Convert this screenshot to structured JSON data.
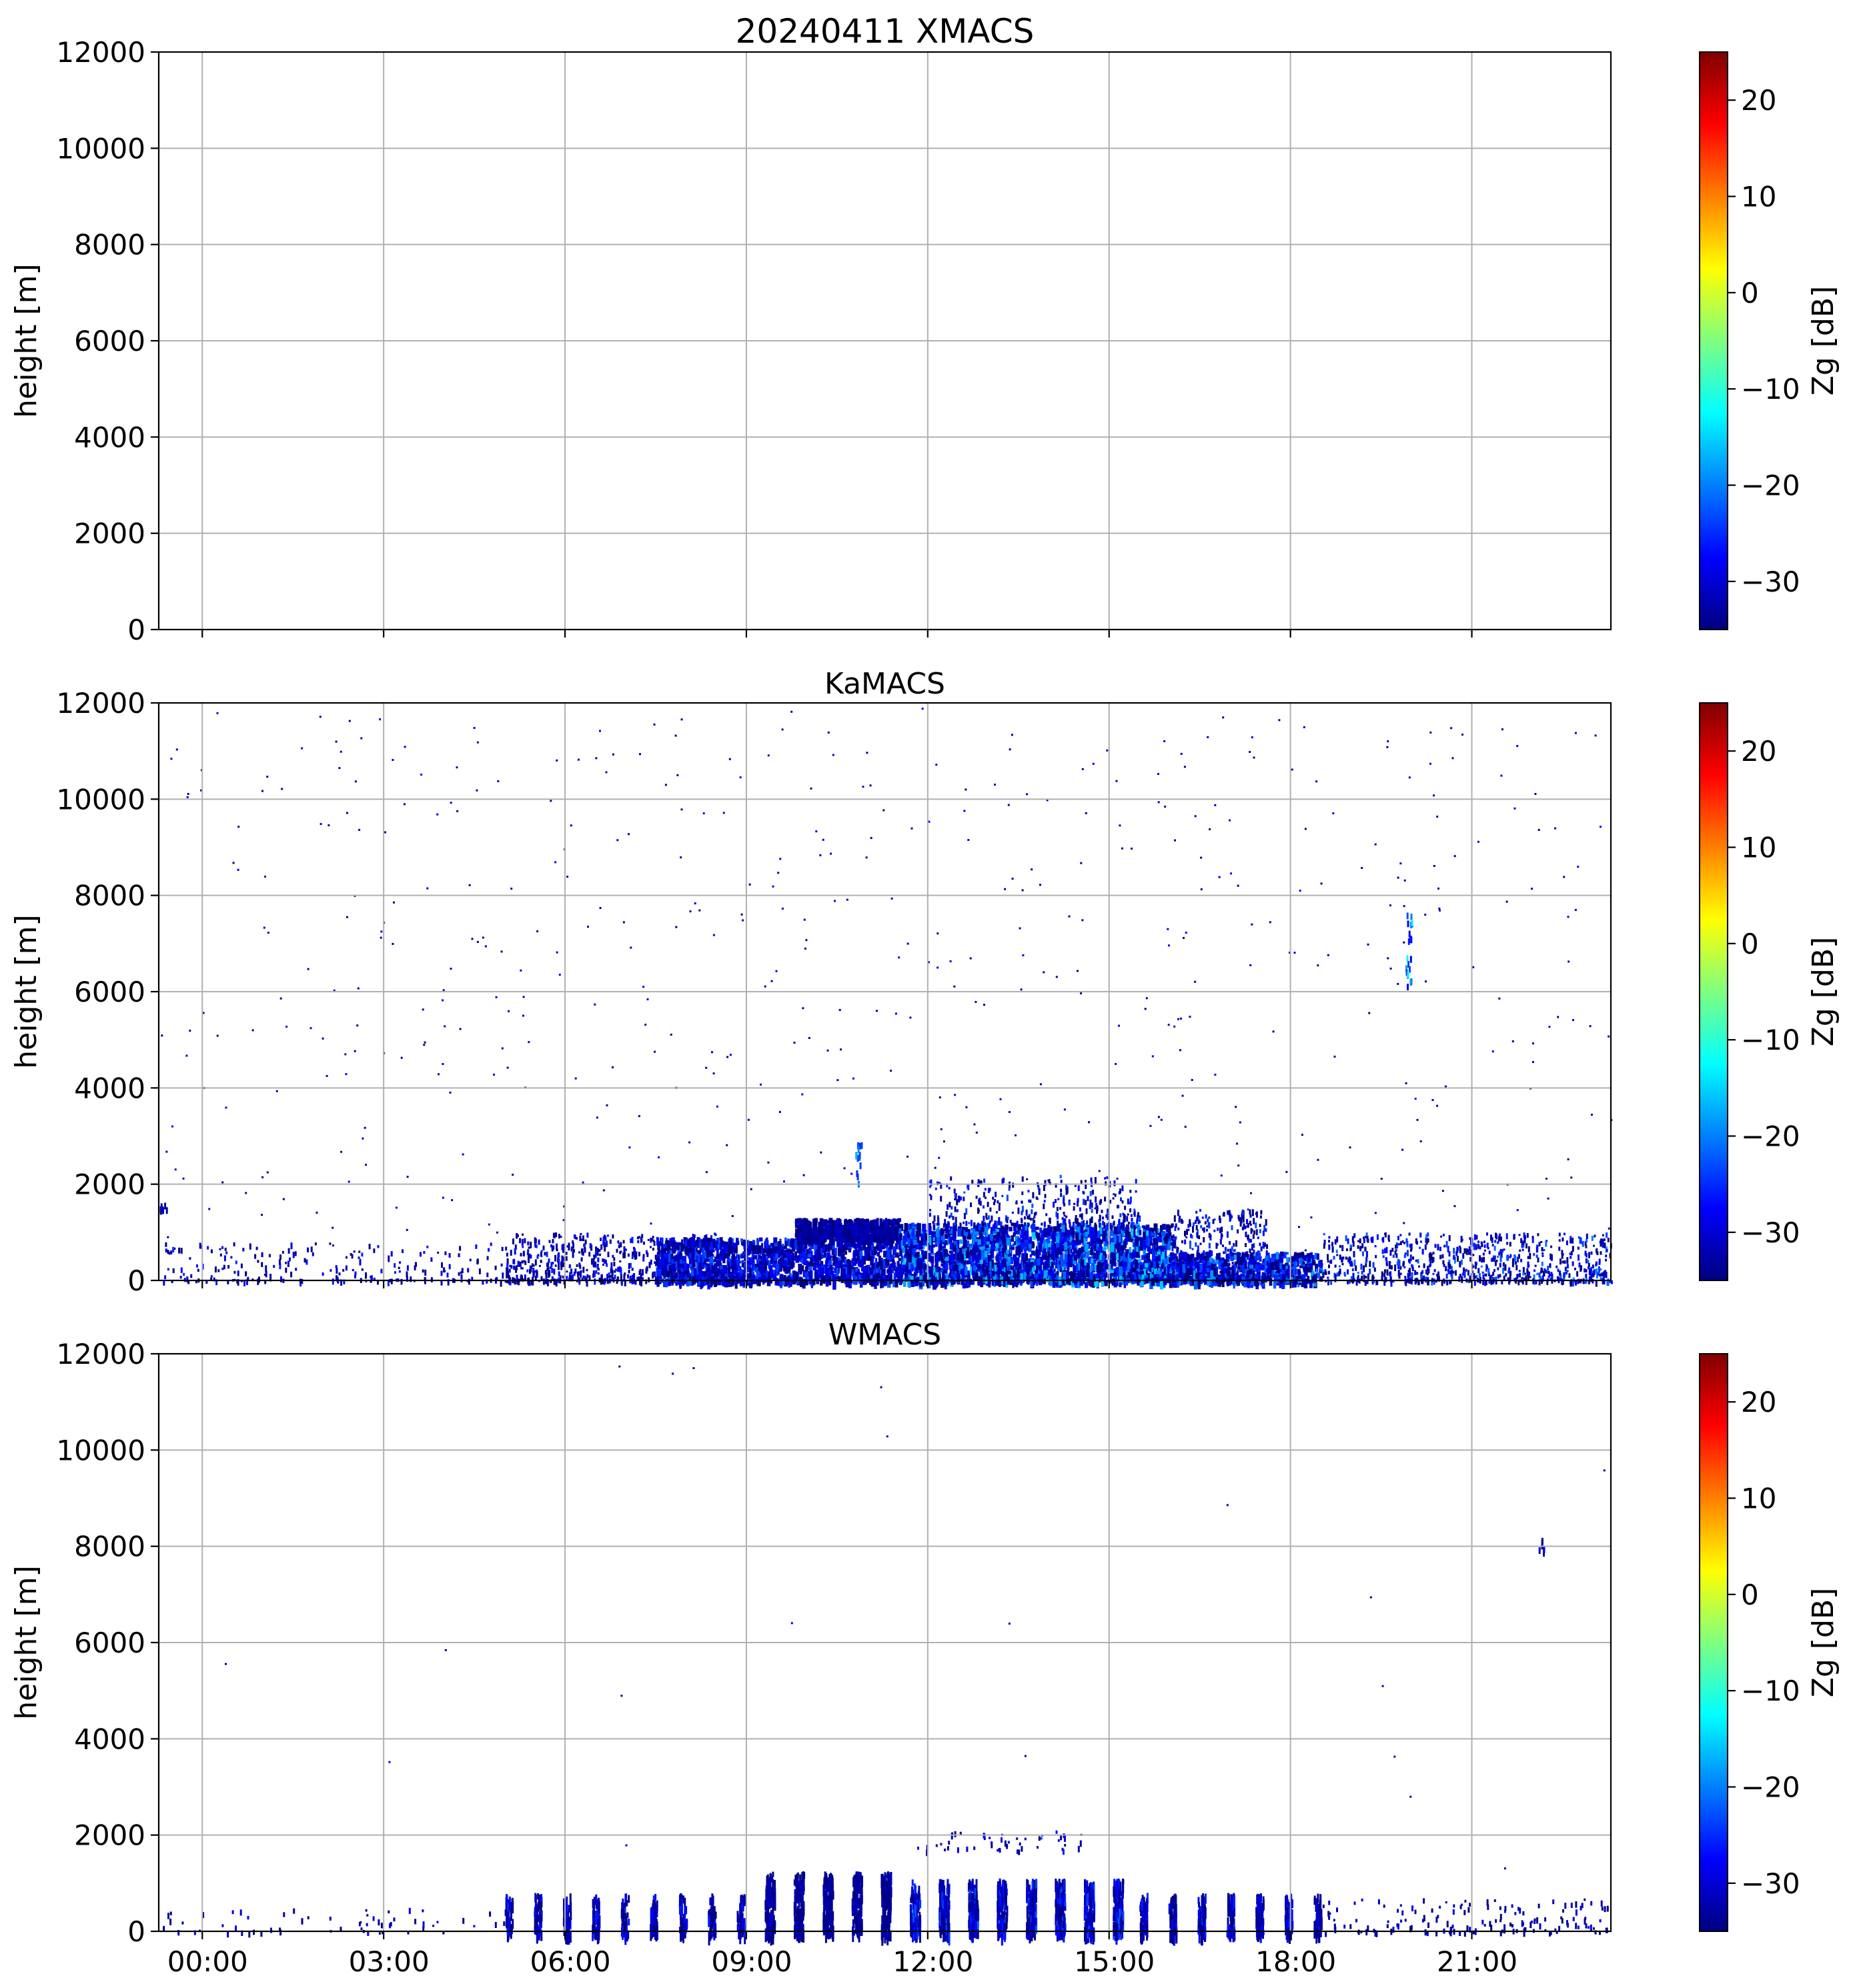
{
  "figure": {
    "title": "20240411 XMACS"
  },
  "colormap": {
    "name": "jet",
    "stops": [
      "#00007f",
      "#0000ff",
      "#007fff",
      "#00ffff",
      "#7fff7f",
      "#ffff00",
      "#ff7f00",
      "#ff0000",
      "#7f0000"
    ]
  },
  "chart_data": [
    {
      "type": "heatmap",
      "title": "20240411 XMACS",
      "xlabel": "",
      "ylabel": "height [m]",
      "x_ticks": [
        "00:00",
        "03:00",
        "06:00",
        "09:00",
        "12:00",
        "15:00",
        "18:00",
        "21:00"
      ],
      "x_tick_labels_visible": false,
      "xlim_hours": [
        -0.72,
        23.3
      ],
      "y_ticks": [
        0,
        2000,
        4000,
        6000,
        8000,
        10000,
        12000
      ],
      "ylim": [
        0,
        12000
      ],
      "grid": true,
      "colorbar": {
        "label": "Zg [dB]",
        "range": [
          -35,
          25
        ],
        "ticks": [
          20,
          10,
          0,
          -10,
          -20,
          -30
        ]
      },
      "features": []
    },
    {
      "type": "heatmap",
      "title": "KaMACS",
      "xlabel": "",
      "ylabel": "height [m]",
      "x_ticks": [
        "00:00",
        "03:00",
        "06:00",
        "09:00",
        "12:00",
        "15:00",
        "18:00",
        "21:00"
      ],
      "x_tick_labels_visible": false,
      "xlim_hours": [
        -0.72,
        23.3
      ],
      "y_ticks": [
        0,
        2000,
        4000,
        6000,
        8000,
        10000,
        12000
      ],
      "ylim": [
        0,
        12000
      ],
      "grid": true,
      "colorbar": {
        "label": "Zg [dB]",
        "range": [
          -35,
          25
        ],
        "ticks": [
          20,
          10,
          0,
          -10,
          -20,
          -30
        ]
      },
      "features": [
        {
          "kind": "noise",
          "t0": -0.7,
          "t1": 23.3,
          "h0": 0,
          "h1": 12000,
          "count": 520,
          "zmin": -35,
          "zmax": -28
        },
        {
          "kind": "speckle",
          "t0": -0.7,
          "t1": 5.0,
          "h0": 0,
          "h1": 800,
          "count": 220,
          "zmin": -35,
          "zmax": -25
        },
        {
          "kind": "speckle",
          "t0": 5.0,
          "t1": 8.5,
          "h0": 0,
          "h1": 1000,
          "count": 600,
          "zmin": -35,
          "zmax": -25
        },
        {
          "kind": "layer",
          "t0": 7.5,
          "t1": 11.5,
          "h0": 0,
          "h1": 900,
          "count": 1500,
          "zmin": -35,
          "zmax": -22
        },
        {
          "kind": "layer",
          "t0": 9.8,
          "t1": 11.5,
          "h0": 900,
          "h1": 1300,
          "count": 650,
          "zmin": -35,
          "zmax": -30
        },
        {
          "kind": "layer",
          "t0": 11.5,
          "t1": 16.0,
          "h0": 0,
          "h1": 1200,
          "count": 2400,
          "zmin": -35,
          "zmax": -15
        },
        {
          "kind": "speckle",
          "t0": 12.0,
          "t1": 15.5,
          "h0": 1200,
          "h1": 2200,
          "count": 320,
          "zmin": -35,
          "zmax": -22
        },
        {
          "kind": "speckle",
          "t0": 16.0,
          "t1": 17.6,
          "h0": 0,
          "h1": 1500,
          "count": 420,
          "zmin": -35,
          "zmax": -22
        },
        {
          "kind": "layer",
          "t0": 16.0,
          "t1": 18.5,
          "h0": 0,
          "h1": 600,
          "count": 600,
          "zmin": -35,
          "zmax": -18
        },
        {
          "kind": "speckle",
          "t0": 18.5,
          "t1": 23.3,
          "h0": 0,
          "h1": 1000,
          "count": 750,
          "zmin": -35,
          "zmax": -20
        },
        {
          "kind": "column",
          "t0": 10.8,
          "t1": 10.9,
          "h0": 2000,
          "h1": 2900,
          "count": 14,
          "zmin": -25,
          "zmax": -15
        },
        {
          "kind": "column",
          "t0": 19.9,
          "t1": 20.0,
          "h0": 6000,
          "h1": 7800,
          "count": 22,
          "zmin": -30,
          "zmax": -10
        },
        {
          "kind": "column",
          "t0": -0.72,
          "t1": -0.6,
          "h0": 1500,
          "h1": 1650,
          "count": 8,
          "zmin": -35,
          "zmax": -30
        }
      ]
    },
    {
      "type": "heatmap",
      "title": "WMACS",
      "xlabel": "",
      "ylabel": "height [m]",
      "x_ticks": [
        "00:00",
        "03:00",
        "06:00",
        "09:00",
        "12:00",
        "15:00",
        "18:00",
        "21:00"
      ],
      "x_tick_labels_visible": true,
      "xlim_hours": [
        -0.72,
        23.3
      ],
      "y_ticks": [
        0,
        2000,
        4000,
        6000,
        8000,
        10000,
        12000
      ],
      "ylim": [
        0,
        12000
      ],
      "grid": true,
      "colorbar": {
        "label": "Zg [dB]",
        "range": [
          -35,
          25
        ],
        "ticks": [
          20,
          10,
          0,
          -10,
          -20,
          -30
        ]
      },
      "features": [
        {
          "kind": "noise",
          "t0": -0.7,
          "t1": 23.3,
          "h0": 0,
          "h1": 12000,
          "count": 20,
          "zmin": -35,
          "zmax": -30
        },
        {
          "kind": "speckle",
          "t0": -0.7,
          "t1": 5.0,
          "h0": 0,
          "h1": 500,
          "count": 60,
          "zmin": -35,
          "zmax": -28
        },
        {
          "kind": "bursts",
          "t0": 5.0,
          "t1": 9.3,
          "period": 0.48,
          "width": 0.12,
          "h0": 0,
          "h1": 800,
          "count": 40,
          "zmin": -35,
          "zmax": -25
        },
        {
          "kind": "bursts",
          "t0": 9.3,
          "t1": 11.7,
          "period": 0.48,
          "width": 0.16,
          "h0": 0,
          "h1": 1250,
          "count": 110,
          "zmin": -35,
          "zmax": -30
        },
        {
          "kind": "bursts",
          "t0": 11.7,
          "t1": 15.5,
          "period": 0.48,
          "width": 0.16,
          "h0": 0,
          "h1": 1100,
          "count": 120,
          "zmin": -35,
          "zmax": -22
        },
        {
          "kind": "bursts",
          "t0": 15.5,
          "t1": 18.5,
          "period": 0.48,
          "width": 0.12,
          "h0": 0,
          "h1": 800,
          "count": 60,
          "zmin": -35,
          "zmax": -25
        },
        {
          "kind": "speckle",
          "t0": 18.5,
          "t1": 23.3,
          "h0": 0,
          "h1": 700,
          "count": 160,
          "zmin": -35,
          "zmax": -28
        },
        {
          "kind": "speckle",
          "t0": 11.8,
          "t1": 14.6,
          "h0": 1700,
          "h1": 2100,
          "count": 50,
          "zmin": -35,
          "zmax": -25
        },
        {
          "kind": "column",
          "t0": 22.1,
          "t1": 22.2,
          "h0": 7800,
          "h1": 8200,
          "count": 6,
          "zmin": -35,
          "zmax": -28
        }
      ]
    }
  ]
}
